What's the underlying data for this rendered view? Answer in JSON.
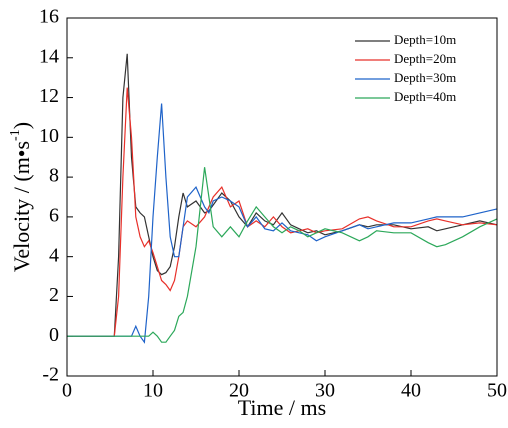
{
  "chart_data": {
    "type": "line",
    "xlabel": "Time / ms",
    "ylabel": {
      "text": "Velocity / (m•s",
      "sup": "-1",
      "close": ")"
    },
    "x": [
      0,
      5,
      5.5,
      6,
      6.5,
      7,
      7.5,
      8,
      8.5,
      9,
      9.5,
      10,
      10.5,
      11,
      11.5,
      12,
      12.5,
      13,
      13.5,
      14,
      15,
      16,
      16.5,
      17,
      18,
      19,
      20,
      21,
      22,
      23,
      24,
      25,
      26,
      27,
      28,
      29,
      30,
      32,
      34,
      35,
      36,
      38,
      40,
      42,
      43,
      44,
      46,
      48,
      50
    ],
    "series": [
      {
        "name": "Depth=10m",
        "color": "#333333",
        "values": [
          0,
          0,
          0,
          4,
          12,
          14.2,
          9,
          6.5,
          6.2,
          6,
          5,
          4,
          3.3,
          3.1,
          3.2,
          3.5,
          4.5,
          6,
          7.2,
          6.5,
          6.8,
          6.2,
          6.3,
          6.6,
          7.2,
          6.8,
          6,
          5.5,
          6.2,
          5.8,
          5.6,
          6.2,
          5.6,
          5.4,
          5.2,
          5.3,
          5.1,
          5.3,
          5.6,
          5.5,
          5.6,
          5.6,
          5.4,
          5.5,
          5.3,
          5.4,
          5.6,
          5.8,
          5.6
        ]
      },
      {
        "name": "Depth=20m",
        "color": "#e8302a",
        "values": [
          0,
          0,
          0,
          2,
          8,
          12.5,
          10,
          6,
          5,
          4.5,
          4.8,
          4.2,
          3.5,
          2.8,
          2.6,
          2.3,
          2.8,
          4,
          5.5,
          5.8,
          5.5,
          6,
          6.5,
          7,
          7.5,
          6.5,
          6.8,
          5.5,
          5.8,
          5.5,
          6,
          5.5,
          5.2,
          5.3,
          5.4,
          5.2,
          5.3,
          5.4,
          5.9,
          6,
          5.8,
          5.5,
          5.5,
          5.8,
          5.9,
          5.8,
          5.6,
          5.7,
          5.6
        ]
      },
      {
        "name": "Depth=30m",
        "color": "#1f63c9",
        "values": [
          0,
          0,
          0,
          0,
          0,
          0,
          0,
          0.5,
          0,
          -0.3,
          2,
          6,
          9,
          11.7,
          8,
          5,
          4,
          4,
          5.5,
          7,
          7.5,
          6.5,
          6.2,
          6.8,
          7,
          6.8,
          6.5,
          5.5,
          6,
          5.4,
          5.3,
          5.7,
          5.3,
          5.2,
          5.1,
          4.8,
          5,
          5.3,
          5.6,
          5.4,
          5.5,
          5.7,
          5.7,
          5.9,
          6,
          6,
          6,
          6.2,
          6.4
        ]
      },
      {
        "name": "Depth=40m",
        "color": "#2ca85a",
        "values": [
          0,
          0,
          0,
          0,
          0,
          0,
          0,
          0,
          0,
          0,
          0,
          0.2,
          0,
          -0.3,
          -0.3,
          0,
          0.3,
          1,
          1.2,
          2,
          4.5,
          8.5,
          7,
          5.5,
          5,
          5.5,
          5,
          5.8,
          6.5,
          6,
          5.5,
          5.2,
          5.5,
          5.3,
          5,
          5.2,
          5.4,
          5.2,
          4.8,
          5,
          5.3,
          5.2,
          5.2,
          4.7,
          4.5,
          4.6,
          5,
          5.5,
          5.9
        ]
      }
    ],
    "xlim": [
      0,
      50
    ],
    "xticks": [
      0,
      10,
      20,
      30,
      40,
      50
    ],
    "ylim": [
      -2,
      16
    ],
    "yticks": [
      -2,
      0,
      2,
      4,
      6,
      8,
      10,
      12,
      14,
      16
    ],
    "legend": "upper right"
  }
}
